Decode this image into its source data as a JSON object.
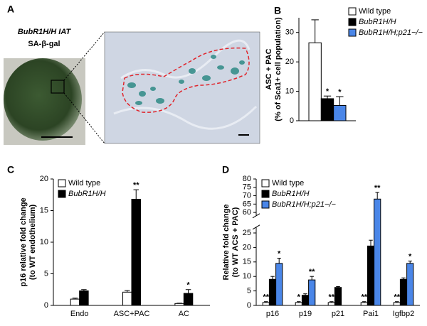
{
  "panel_a": {
    "panel": "A",
    "title": "BubR1H/H IAT",
    "stain": "SA-β-gal"
  },
  "chart_data": [
    {
      "type": "bar",
      "panel": "B",
      "ylabel": [
        "ASC + PAC",
        "(% of Sca1+ cell population)"
      ],
      "categories": [
        null
      ],
      "series": [
        {
          "name": "Wild type",
          "color": "#ffffff",
          "values": [
            26.5
          ],
          "errors": [
            7.8
          ],
          "sig": [
            null
          ]
        },
        {
          "name": "BubR1H/H",
          "color": "#000000",
          "values": [
            7.5
          ],
          "errors": [
            0.9
          ],
          "sig": [
            "*"
          ]
        },
        {
          "name": "BubR1H/H;p21−/−",
          "color": "#4a86e8",
          "values": [
            5.2
          ],
          "errors": [
            3.0
          ],
          "sig": [
            "*"
          ]
        }
      ],
      "ylim": [
        0,
        35
      ],
      "yticks": [
        0,
        10,
        20,
        30
      ],
      "legend": "top-right"
    },
    {
      "type": "bar",
      "panel": "C",
      "ylabel": [
        "p16 relative fold change",
        "(to WT endothelium)"
      ],
      "categories": [
        "Endo",
        "ASC+PAC",
        "AC"
      ],
      "series": [
        {
          "name": "Wild type",
          "color": "#ffffff",
          "values": [
            1.0,
            2.1,
            0.3
          ],
          "errors": [
            0.15,
            0.25,
            0.05
          ],
          "sig": [
            null,
            null,
            null
          ]
        },
        {
          "name": "BubR1H/H",
          "color": "#000000",
          "values": [
            2.3,
            16.8,
            1.9
          ],
          "errors": [
            0.2,
            1.5,
            0.6
          ],
          "sig": [
            null,
            "**",
            "*"
          ]
        }
      ],
      "ylim": [
        0,
        20
      ],
      "yticks": [
        0,
        5,
        10,
        15,
        20
      ],
      "legend": "top-left"
    },
    {
      "type": "bar",
      "panel": "D",
      "ylabel": [
        "Relative fold change",
        "(to WT ACS + PAC)"
      ],
      "categories": [
        "p16",
        "p19",
        "p21",
        "Pai1",
        "Igfbp2"
      ],
      "series": [
        {
          "name": "Wild type",
          "color": "#ffffff",
          "values": [
            1,
            1,
            1,
            1,
            1
          ],
          "errors": [
            0.3,
            0.3,
            0.3,
            0.3,
            0.3
          ],
          "sig": [
            "**",
            "*",
            "**",
            "**",
            "**"
          ]
        },
        {
          "name": "BubR1H/H",
          "color": "#000000",
          "values": [
            9,
            3.5,
            6.2,
            20.5,
            9
          ],
          "errors": [
            1,
            0.5,
            0.3,
            2,
            0.5
          ],
          "sig": [
            null,
            null,
            null,
            null,
            null
          ]
        },
        {
          "name": "BubR1H/H;p21−/−",
          "color": "#4a86e8",
          "values": [
            14.5,
            8.8,
            null,
            68,
            14.5
          ],
          "errors": [
            1.8,
            1.2,
            null,
            4,
            0.8
          ],
          "sig": [
            "*",
            "**",
            null,
            "**",
            "*"
          ]
        }
      ],
      "ylim": [
        0,
        80
      ],
      "ybreak": [
        27,
        58
      ],
      "yticks": [
        0,
        5,
        10,
        15,
        20,
        25,
        60,
        65,
        70,
        75,
        80
      ],
      "legend": "top-left"
    }
  ]
}
